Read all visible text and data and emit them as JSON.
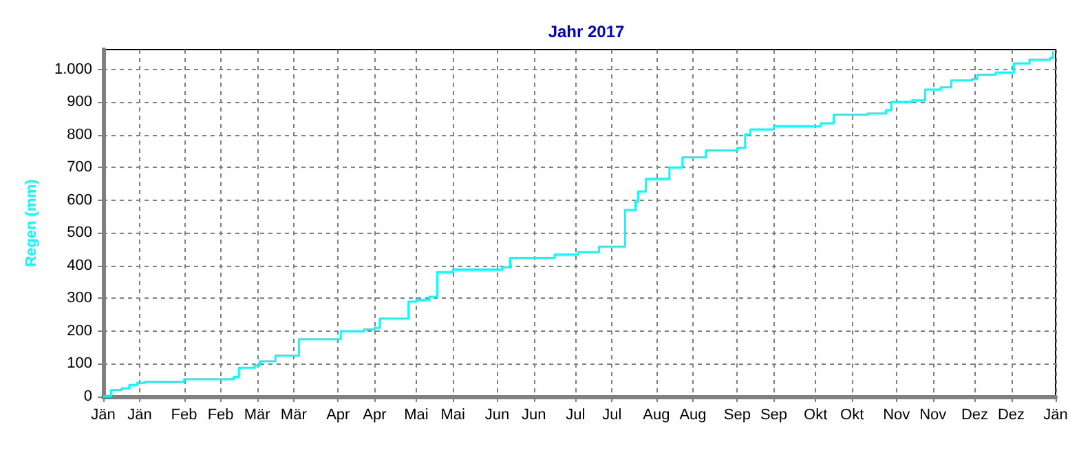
{
  "chart_data": {
    "type": "step",
    "title": "Jahr 2017",
    "ylabel": "Regen (mm)",
    "x": [
      "2017-01-01",
      "2017-01-04",
      "2017-01-08",
      "2017-01-11",
      "2017-01-14",
      "2017-01-17",
      "2017-02-01",
      "2017-02-20",
      "2017-02-22",
      "2017-02-28",
      "2017-03-02",
      "2017-03-08",
      "2017-03-17",
      "2017-04-02",
      "2017-04-11",
      "2017-04-15",
      "2017-04-17",
      "2017-04-28",
      "2017-05-01",
      "2017-05-06",
      "2017-05-09",
      "2017-05-15",
      "2017-06-03",
      "2017-06-06",
      "2017-06-23",
      "2017-07-02",
      "2017-07-10",
      "2017-07-20",
      "2017-07-24",
      "2017-07-25",
      "2017-07-28",
      "2017-08-06",
      "2017-08-11",
      "2017-08-20",
      "2017-09-01",
      "2017-09-04",
      "2017-09-06",
      "2017-09-15",
      "2017-10-03",
      "2017-10-08",
      "2017-10-21",
      "2017-10-28",
      "2017-10-30",
      "2017-11-07",
      "2017-11-12",
      "2017-11-18",
      "2017-11-22",
      "2017-11-30",
      "2017-12-02",
      "2017-12-09",
      "2017-12-16",
      "2017-12-22",
      "2017-12-30",
      "2017-12-31"
    ],
    "series": [
      {
        "color": "#00ffff",
        "values": [
          0,
          20,
          25,
          35,
          42,
          45,
          53,
          60,
          88,
          95,
          108,
          125,
          175,
          200,
          205,
          210,
          238,
          290,
          295,
          305,
          380,
          388,
          395,
          424,
          434,
          441,
          458,
          570,
          595,
          627,
          665,
          700,
          731,
          752,
          760,
          801,
          816,
          826,
          835,
          861,
          865,
          875,
          900,
          905,
          938,
          945,
          966,
          970,
          983,
          990,
          1018,
          1029,
          1035,
          1055
        ]
      }
    ],
    "xlim": [
      "2017-01-01",
      "2018-01-01"
    ],
    "xticks": [
      {
        "value": "2017-01-01",
        "label": "Jän"
      },
      {
        "value": "2017-01-15",
        "label": "Jän"
      },
      {
        "value": "2017-02-01",
        "label": "Feb"
      },
      {
        "value": "2017-02-15",
        "label": "Feb"
      },
      {
        "value": "2017-03-01",
        "label": "Mär"
      },
      {
        "value": "2017-03-15",
        "label": "Mär"
      },
      {
        "value": "2017-04-01",
        "label": "Apr"
      },
      {
        "value": "2017-04-15",
        "label": "Apr"
      },
      {
        "value": "2017-05-01",
        "label": "Mai"
      },
      {
        "value": "2017-05-15",
        "label": "Mai"
      },
      {
        "value": "2017-06-01",
        "label": "Jun"
      },
      {
        "value": "2017-06-15",
        "label": "Jun"
      },
      {
        "value": "2017-07-01",
        "label": "Jul"
      },
      {
        "value": "2017-07-15",
        "label": "Jul"
      },
      {
        "value": "2017-08-01",
        "label": "Aug"
      },
      {
        "value": "2017-08-15",
        "label": "Aug"
      },
      {
        "value": "2017-09-01",
        "label": "Sep"
      },
      {
        "value": "2017-09-15",
        "label": "Sep"
      },
      {
        "value": "2017-10-01",
        "label": "Okt"
      },
      {
        "value": "2017-10-15",
        "label": "Okt"
      },
      {
        "value": "2017-11-01",
        "label": "Nov"
      },
      {
        "value": "2017-11-15",
        "label": "Nov"
      },
      {
        "value": "2017-12-01",
        "label": "Dez"
      },
      {
        "value": "2017-12-15",
        "label": "Dez"
      },
      {
        "value": "2018-01-01",
        "label": "Jän"
      }
    ],
    "ylim": [
      0,
      1060
    ],
    "yticks": [
      0,
      100,
      200,
      300,
      400,
      500,
      600,
      700,
      800,
      900,
      {
        "value": 1000,
        "label": "1.000"
      }
    ],
    "grid": true,
    "marker": "none"
  }
}
